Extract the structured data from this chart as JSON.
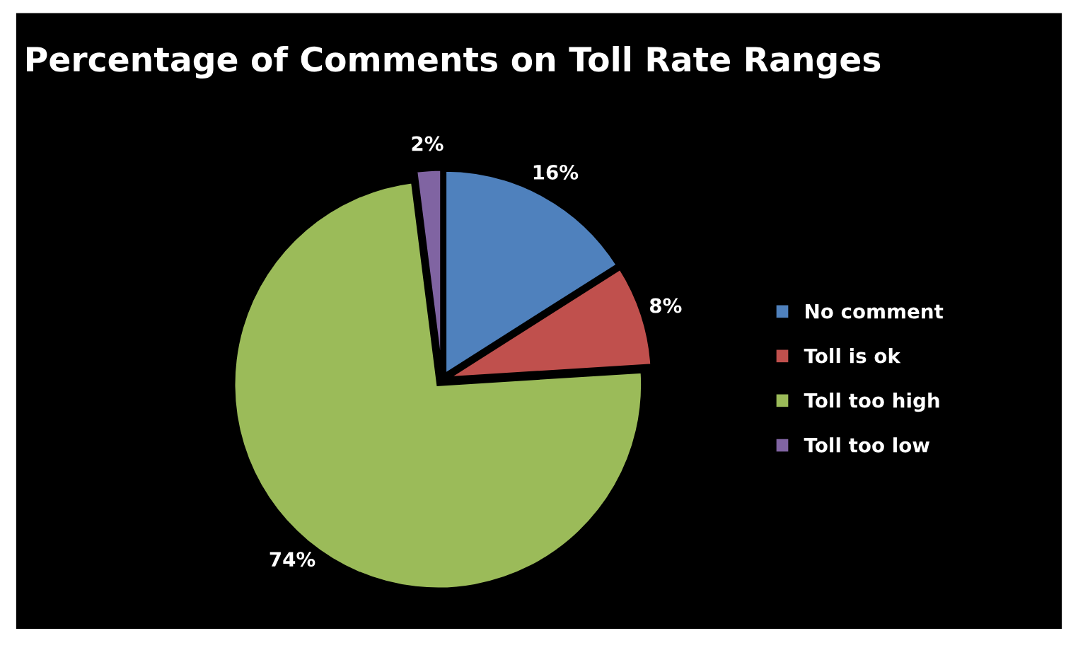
{
  "chart_data": {
    "type": "pie",
    "title": "Percentage of Comments on Toll Rate Ranges",
    "categories": [
      "No comment",
      "Toll is ok",
      "Toll too high",
      "Toll too low"
    ],
    "values": [
      16,
      8,
      74,
      2
    ],
    "colors": [
      "#4f81bd",
      "#c0504d",
      "#9bbb59",
      "#8064a2"
    ],
    "value_labels": [
      "16%",
      "8%",
      "74%",
      "2%"
    ],
    "legend": "right"
  }
}
